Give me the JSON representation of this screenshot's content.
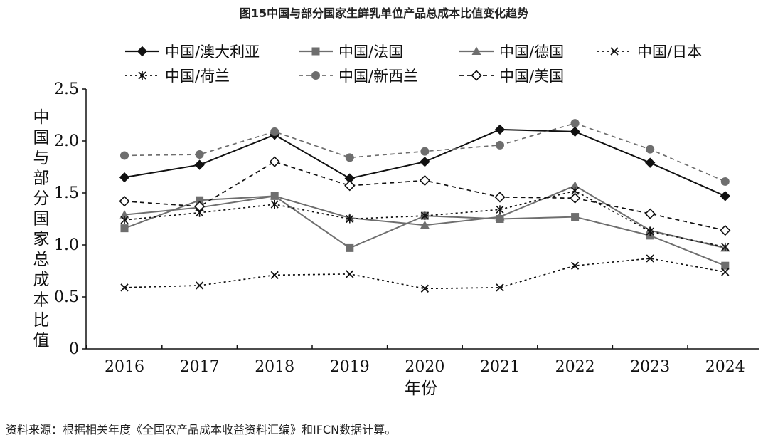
{
  "chart_data": {
    "type": "line",
    "title": "图15中国与部分国家生鲜乳单位产品总成本比值变化趋势",
    "xlabel": "年份",
    "ylabel": "中国与部分国家总成本比值",
    "source": "资料来源：根据相关年度《全国农产品成本收益资料汇编》和IFCN数据计算。",
    "x": [
      "2016",
      "2017",
      "2018",
      "2019",
      "2020",
      "2021",
      "2022",
      "2023",
      "2024"
    ],
    "ylim": [
      0,
      2.5
    ],
    "yticks": [
      "0",
      "0.5",
      "1.0",
      "1.5",
      "2.0",
      "2.5"
    ],
    "grid": false,
    "legend_position": "top",
    "series": [
      {
        "name": "中国/澳大利亚",
        "values": [
          1.65,
          1.77,
          2.06,
          1.64,
          1.8,
          2.11,
          2.09,
          1.79,
          1.47
        ],
        "style": "solid",
        "marker": "diamond-filled",
        "color": "#111111"
      },
      {
        "name": "中国/法国",
        "values": [
          1.16,
          1.43,
          1.47,
          0.97,
          1.28,
          1.25,
          1.27,
          1.09,
          0.8
        ],
        "style": "solid",
        "marker": "square-filled",
        "color": "#6e6e6e"
      },
      {
        "name": "中国/德国",
        "values": [
          1.29,
          1.36,
          1.47,
          1.26,
          1.19,
          1.27,
          1.57,
          1.14,
          0.97
        ],
        "style": "solid",
        "marker": "triangle-filled",
        "color": "#6e6e6e"
      },
      {
        "name": "中国/日本",
        "values": [
          0.59,
          0.61,
          0.71,
          0.72,
          0.58,
          0.59,
          0.8,
          0.87,
          0.74
        ],
        "style": "dotted",
        "marker": "x",
        "color": "#111111"
      },
      {
        "name": "中国/荷兰",
        "values": [
          1.24,
          1.31,
          1.39,
          1.25,
          1.28,
          1.34,
          1.52,
          1.13,
          0.98
        ],
        "style": "dotted",
        "marker": "asterisk",
        "color": "#111111"
      },
      {
        "name": "中国/新西兰",
        "values": [
          1.86,
          1.87,
          2.09,
          1.84,
          1.9,
          1.96,
          2.17,
          1.92,
          1.61
        ],
        "style": "dashed",
        "marker": "circle-filled",
        "color": "#6e6e6e"
      },
      {
        "name": "中国/美国",
        "values": [
          1.42,
          1.37,
          1.8,
          1.57,
          1.62,
          1.46,
          1.45,
          1.3,
          1.14
        ],
        "style": "dashed",
        "marker": "diamond-open",
        "color": "#111111"
      }
    ]
  }
}
